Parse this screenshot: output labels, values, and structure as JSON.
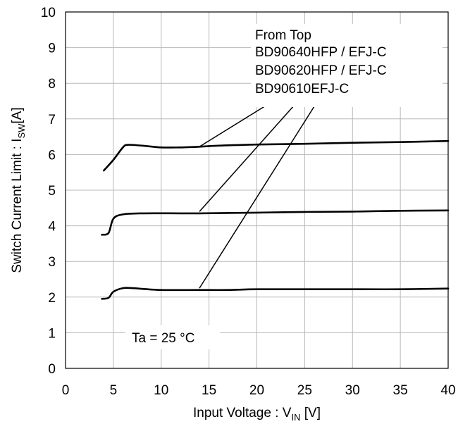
{
  "chart_data": {
    "type": "line",
    "xlabel": {
      "main": "Input Voltage : V",
      "sub": "IN",
      "unit": " [V]"
    },
    "ylabel": {
      "main": "Switch Current Limit : I",
      "sub": "SW",
      "unit": "[A]"
    },
    "xlim": [
      0,
      40
    ],
    "ylim": [
      0,
      10
    ],
    "xticks": [
      0,
      5,
      10,
      15,
      20,
      25,
      30,
      35,
      40
    ],
    "yticks": [
      0,
      1,
      2,
      3,
      4,
      5,
      6,
      7,
      8,
      9,
      10
    ],
    "grid": true,
    "legend": {
      "title": "From Top",
      "entries": [
        "BD90640HFP / EFJ-C",
        "BD90620HFP / EFJ-C",
        "BD90610EFJ-C"
      ]
    },
    "condition": "Ta = 25 °C",
    "series": [
      {
        "name": "BD90640HFP / EFJ-C",
        "points": [
          [
            4.0,
            5.55
          ],
          [
            5.0,
            5.85
          ],
          [
            6.0,
            6.2
          ],
          [
            6.5,
            6.27
          ],
          [
            8,
            6.25
          ],
          [
            10,
            6.2
          ],
          [
            12,
            6.2
          ],
          [
            14,
            6.22
          ],
          [
            16,
            6.25
          ],
          [
            20,
            6.28
          ],
          [
            25,
            6.3
          ],
          [
            30,
            6.33
          ],
          [
            35,
            6.35
          ],
          [
            40,
            6.38
          ]
        ]
      },
      {
        "name": "BD90620HFP / EFJ-C",
        "points": [
          [
            3.8,
            3.75
          ],
          [
            4.5,
            3.8
          ],
          [
            5.0,
            4.2
          ],
          [
            6.0,
            4.32
          ],
          [
            8,
            4.35
          ],
          [
            12,
            4.35
          ],
          [
            14,
            4.35
          ],
          [
            20,
            4.37
          ],
          [
            25,
            4.39
          ],
          [
            30,
            4.4
          ],
          [
            35,
            4.42
          ],
          [
            40,
            4.43
          ]
        ]
      },
      {
        "name": "BD90610EFJ-C",
        "points": [
          [
            3.8,
            1.95
          ],
          [
            4.5,
            1.98
          ],
          [
            5.0,
            2.15
          ],
          [
            6.0,
            2.25
          ],
          [
            7,
            2.25
          ],
          [
            10,
            2.2
          ],
          [
            14,
            2.2
          ],
          [
            17,
            2.2
          ],
          [
            20,
            2.22
          ],
          [
            25,
            2.22
          ],
          [
            30,
            2.22
          ],
          [
            35,
            2.22
          ],
          [
            40,
            2.24
          ]
        ]
      }
    ],
    "leaders": [
      {
        "from": [
          14.0,
          6.22
        ],
        "to": [
          20.8,
          7.35
        ]
      },
      {
        "from": [
          14.0,
          4.4
        ],
        "to": [
          23.8,
          7.35
        ]
      },
      {
        "from": [
          14.0,
          2.25
        ],
        "to": [
          26.0,
          7.35
        ]
      }
    ]
  }
}
